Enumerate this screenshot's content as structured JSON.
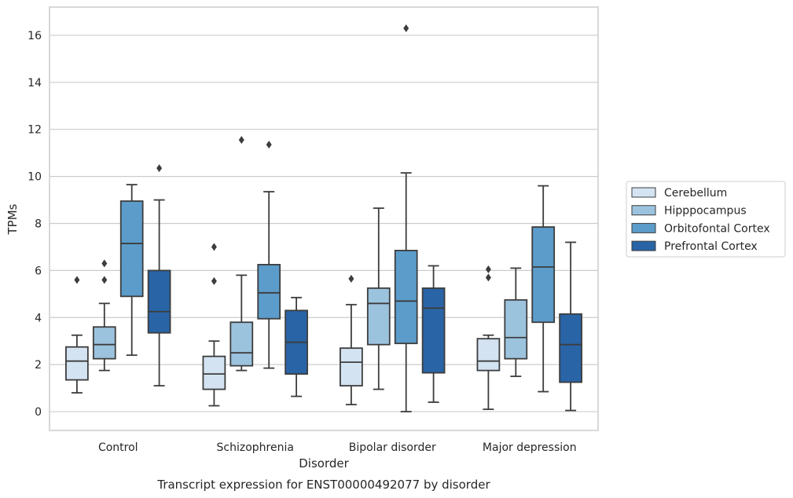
{
  "chart_data": {
    "type": "box",
    "title": "Transcript expression for ENST00000492077 by disorder",
    "xlabel": "Disorder",
    "ylabel": "TPMs",
    "ylim": [
      -0.8,
      17.2
    ],
    "yticks": [
      0,
      2,
      4,
      6,
      8,
      10,
      12,
      14,
      16
    ],
    "grid": "horizontal",
    "legend_position": "right",
    "categories": [
      "Control",
      "Schizophrenia",
      "Bipolar disorder",
      "Major depression"
    ],
    "series": [
      {
        "name": "Cerebellum",
        "color": "#d3e3f2",
        "boxes": [
          {
            "whisker_low": 0.8,
            "q1": 1.35,
            "median": 2.15,
            "q3": 2.75,
            "whisker_high": 3.25,
            "outliers": [
              5.6
            ]
          },
          {
            "whisker_low": 0.25,
            "q1": 0.95,
            "median": 1.6,
            "q3": 2.35,
            "whisker_high": 3.0,
            "outliers": [
              5.55,
              7.0
            ]
          },
          {
            "whisker_low": 0.3,
            "q1": 1.1,
            "median": 2.1,
            "q3": 2.7,
            "whisker_high": 4.55,
            "outliers": [
              5.65
            ]
          },
          {
            "whisker_low": 0.1,
            "q1": 1.75,
            "median": 2.15,
            "q3": 3.1,
            "whisker_high": 3.25,
            "outliers": [
              5.7,
              6.05
            ]
          }
        ]
      },
      {
        "name": "Hipppocampus",
        "color": "#9cc3de",
        "boxes": [
          {
            "whisker_low": 1.75,
            "q1": 2.25,
            "median": 2.85,
            "q3": 3.6,
            "whisker_high": 4.6,
            "outliers": [
              5.6,
              6.3
            ]
          },
          {
            "whisker_low": 1.75,
            "q1": 1.95,
            "median": 2.5,
            "q3": 3.8,
            "whisker_high": 5.8,
            "outliers": [
              11.55
            ]
          },
          {
            "whisker_low": 0.95,
            "q1": 2.85,
            "median": 4.6,
            "q3": 5.25,
            "whisker_high": 8.65,
            "outliers": []
          },
          {
            "whisker_low": 1.5,
            "q1": 2.25,
            "median": 3.15,
            "q3": 4.75,
            "whisker_high": 6.1,
            "outliers": []
          }
        ]
      },
      {
        "name": "Orbitofontal Cortex",
        "color": "#5b9cca",
        "boxes": [
          {
            "whisker_low": 2.4,
            "q1": 4.9,
            "median": 7.15,
            "q3": 8.95,
            "whisker_high": 9.65,
            "outliers": []
          },
          {
            "whisker_low": 1.85,
            "q1": 3.95,
            "median": 5.05,
            "q3": 6.25,
            "whisker_high": 9.35,
            "outliers": [
              11.35
            ]
          },
          {
            "whisker_low": 0.0,
            "q1": 2.9,
            "median": 4.7,
            "q3": 6.85,
            "whisker_high": 10.15,
            "outliers": [
              16.3
            ]
          },
          {
            "whisker_low": 0.85,
            "q1": 3.8,
            "median": 6.15,
            "q3": 7.85,
            "whisker_high": 9.6,
            "outliers": []
          }
        ]
      },
      {
        "name": "Prefrontal Cortex",
        "color": "#2964a6",
        "boxes": [
          {
            "whisker_low": 1.1,
            "q1": 3.35,
            "median": 4.25,
            "q3": 6.0,
            "whisker_high": 9.0,
            "outliers": [
              10.35
            ]
          },
          {
            "whisker_low": 0.65,
            "q1": 1.6,
            "median": 2.95,
            "q3": 4.3,
            "whisker_high": 4.85,
            "outliers": []
          },
          {
            "whisker_low": 0.4,
            "q1": 1.65,
            "median": 4.4,
            "q3": 5.25,
            "whisker_high": 6.2,
            "outliers": []
          },
          {
            "whisker_low": 0.05,
            "q1": 1.25,
            "median": 2.85,
            "q3": 4.15,
            "whisker_high": 7.2,
            "outliers": []
          }
        ]
      }
    ]
  }
}
